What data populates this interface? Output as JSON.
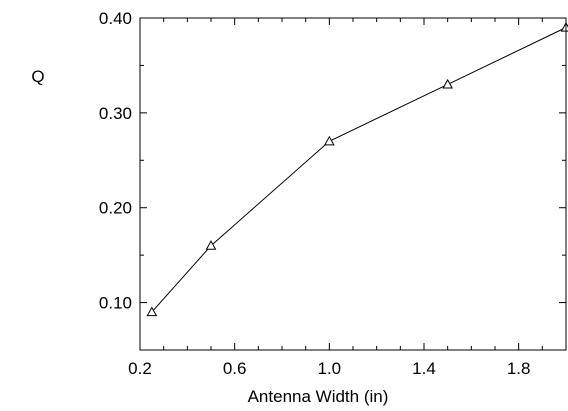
{
  "chart_data": {
    "type": "line",
    "title": "",
    "xlabel": "Antenna Width (in)",
    "ylabel": "Q",
    "xlim": [
      0.2,
      2.0
    ],
    "ylim": [
      0.05,
      0.4
    ],
    "x_ticks": [
      0.2,
      0.6,
      1.0,
      1.4,
      1.8
    ],
    "x_tick_labels": [
      "0.2",
      "0.6",
      "1.0",
      "1.4",
      "1.8"
    ],
    "y_ticks": [
      0.1,
      0.2,
      0.3,
      0.4
    ],
    "y_tick_labels": [
      "0.10",
      "0.20",
      "0.30",
      "0.40"
    ],
    "grid": false,
    "marker": "triangle-open",
    "line_color": "#000000",
    "series": [
      {
        "x": [
          0.25,
          0.5,
          1.0,
          1.5,
          2.0
        ],
        "y": [
          0.09,
          0.16,
          0.27,
          0.33,
          0.39
        ]
      }
    ]
  }
}
